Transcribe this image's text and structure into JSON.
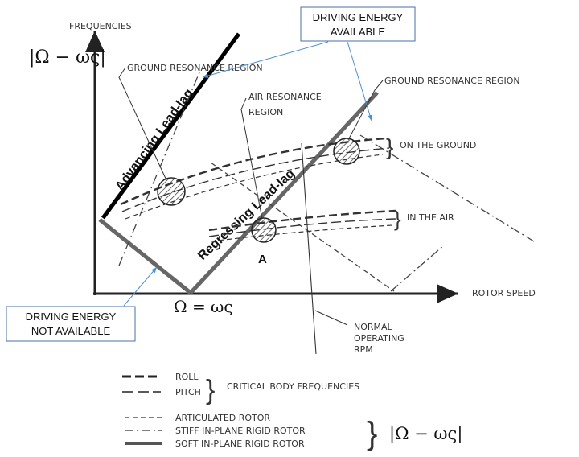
{
  "axes": {
    "y_title": "FREQUENCIES",
    "x_title": "ROTOR SPEED",
    "y_formula": "|Ω − ως|",
    "x_formula": "Ω = ως"
  },
  "callouts": {
    "energy_available": [
      "DRIVING ENERGY",
      "AVAILABLE"
    ],
    "energy_not_available": [
      "DRIVING ENERGY",
      "NOT AVAILABLE"
    ]
  },
  "regions": {
    "ground_left": "GROUND RESONANCE REGION",
    "ground_right": "GROUND RESONANCE REGION",
    "air": [
      "AIR RESONANCE",
      "REGION"
    ]
  },
  "branches": {
    "advancing": "Advancing Lead-lag",
    "regressing": "Regressing Lead-lag"
  },
  "brace_labels": {
    "on_ground": "ON THE GROUND",
    "in_air": "IN THE AIR"
  },
  "point_a": "A",
  "normal_rpm": [
    "NORMAL",
    "OPERATING",
    "RPM"
  ],
  "legend": {
    "roll": "ROLL",
    "pitch": "PITCH",
    "critical": "CRITICAL BODY FREQUENCIES",
    "articulated": "ARTICULATED ROTOR",
    "stiff": "STIFF IN-PLANE RIGID ROTOR",
    "soft": "SOFT IN-PLANE RIGID ROTOR",
    "formula": "|Ω − ως|"
  },
  "colors": {
    "callout_border": "#4a6fa5",
    "arrow": "#4a8fd0",
    "ink": "#222222"
  }
}
